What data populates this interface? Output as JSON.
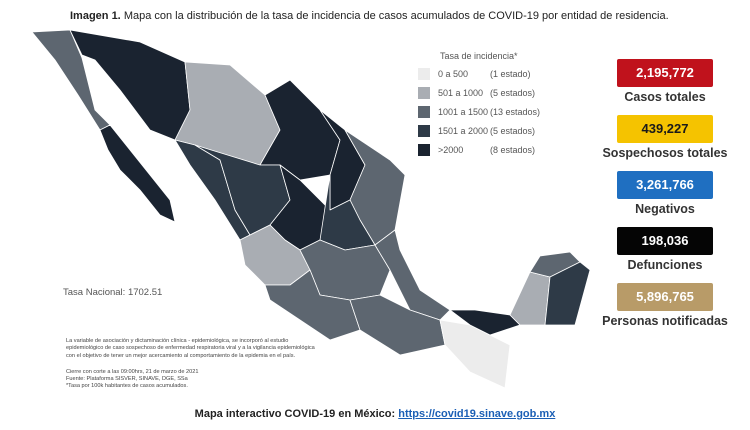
{
  "header": {
    "label": "Imagen 1.",
    "title": "Mapa con la distribución de la tasa de incidencia de casos acumulados de COVID-19 por entidad de residencia."
  },
  "legend": {
    "title": "Tasa de incidencia*",
    "items": [
      {
        "range": "0 a 500",
        "count": "(1 estado)",
        "color": "#ececec"
      },
      {
        "range": "501 a 1000",
        "count": "(5 estados)",
        "color": "#a9adb3"
      },
      {
        "range": "1001 a 1500",
        "count": "(13 estados)",
        "color": "#5d6670"
      },
      {
        "range": "1501 a 2000",
        "count": "(5 estados)",
        "color": "#2e3a47"
      },
      {
        "range": ">2000",
        "count": "(8 estados)",
        "color": "#1a2330"
      }
    ]
  },
  "national_rate": "Tasa Nacional: 1702.51",
  "stats": [
    {
      "value": "2,195,772",
      "label": "Casos totales",
      "color": "#c0121c",
      "text_color": "#ffffff"
    },
    {
      "value": "439,227",
      "label": "Sospechosos totales",
      "color": "#f5c300",
      "text_color": "#1a1a1a"
    },
    {
      "value": "3,261,766",
      "label": "Negativos",
      "color": "#1f6fc1",
      "text_color": "#ffffff"
    },
    {
      "value": "198,036",
      "label": "Defunciones",
      "color": "#050505",
      "text_color": "#ffffff"
    },
    {
      "value": "5,896,765",
      "label": "Personas notificadas",
      "color": "#b89b68",
      "text_color": "#ffffff"
    }
  ],
  "notes": [
    "La variable de asociación y dictaminación clínica - epidemiológica, se incorporó al estudio",
    "epidemiológico de caso sospechoso de enfermedad respiratoria viral y a la vigilancia epidemiológica",
    "con el objetivo de tener un mejor acercamiento al comportamiento de la epidemia en el país."
  ],
  "sources": [
    "Cierre con corte a las 09:00hrs, 21 de marzo de 2021",
    "Fuente: Plataforma SISVER, SINAVE, DGE, SSa",
    "*Tasa por 100k habitantes de casos acumulados."
  ],
  "footer": {
    "text": "Mapa interactivo COVID-19 en México:",
    "link": "https://covid19.sinave.gob.mx"
  }
}
